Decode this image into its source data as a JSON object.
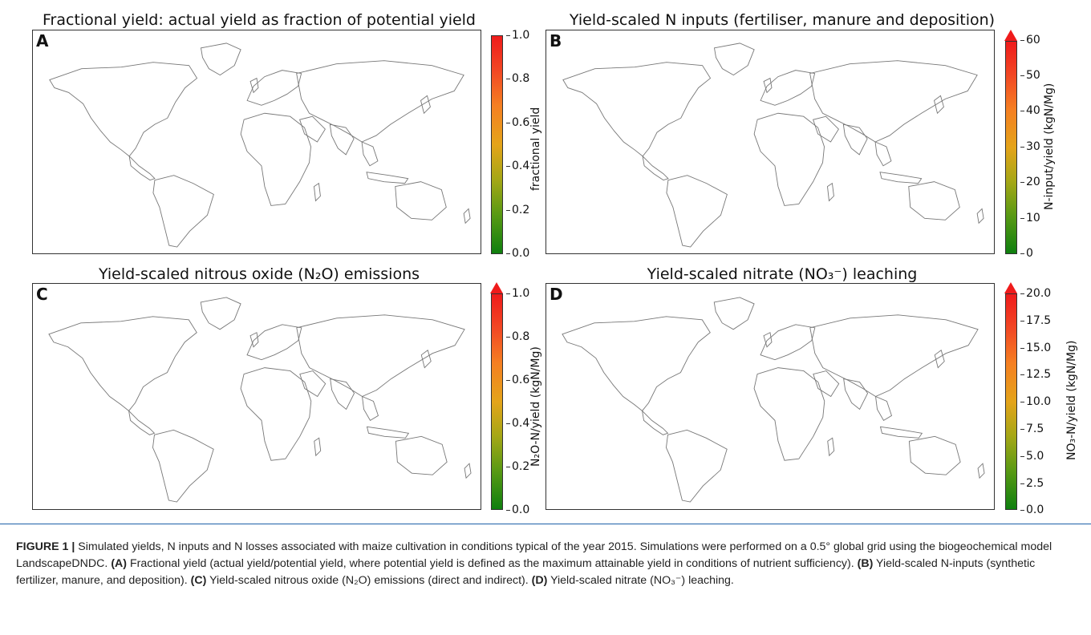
{
  "panels": [
    {
      "letter": "A",
      "title": "Fractional yield: actual yield as fraction of potential yield",
      "colorbar_label": "fractional yield",
      "ticks": [
        "1.0",
        "0.8",
        "0.6",
        "0.4",
        "0.2",
        "0.0"
      ],
      "extend_max": false
    },
    {
      "letter": "B",
      "title": "Yield-scaled N inputs (fertiliser, manure and deposition)",
      "colorbar_label": "N-input/yield (kgN/Mg)",
      "ticks": [
        "60",
        "50",
        "40",
        "30",
        "20",
        "10",
        "0"
      ],
      "extend_max": true
    },
    {
      "letter": "C",
      "title": "Yield-scaled nitrous oxide (N₂O) emissions",
      "colorbar_label": "N₂O-N/yield (kgN/Mg)",
      "ticks": [
        "1.0",
        "0.8",
        "0.6",
        "0.4",
        "0.2",
        "0.0"
      ],
      "extend_max": true
    },
    {
      "letter": "D",
      "title": "Yield-scaled nitrate (NO₃⁻) leaching",
      "colorbar_label": "NO₃-N/yield (kgN/Mg)",
      "ticks": [
        "20.0",
        "17.5",
        "15.0",
        "12.5",
        "10.0",
        "7.5",
        "5.0",
        "2.5",
        "0.0"
      ],
      "extend_max": true
    }
  ],
  "colors": {
    "low": "#0f7f0f",
    "mid": "#e4a41a",
    "high": "#ef1b1b",
    "land_outline": "#777777",
    "separator": "#1c5fa8"
  },
  "caption": {
    "label": "FIGURE 1 |",
    "text": "Simulated yields, N inputs and N losses associated with maize cultivation in conditions typical of the year 2015. Simulations were performed on a 0.5° global grid using the biogeochemical model LandscapeDNDC.",
    "a_label": "(A)",
    "a_text": "Fractional yield (actual yield/potential yield, where potential yield is defined as the maximum attainable yield in conditions of nutrient sufficiency).",
    "b_label": "(B)",
    "b_text": "Yield-scaled N-inputs (synthetic fertilizer, manure, and deposition).",
    "c_label": "(C)",
    "c_text": "Yield-scaled nitrous oxide (N₂O) emissions (direct and indirect).",
    "d_label": "(D)",
    "d_text": "Yield-scaled nitrate (NO₃⁻) leaching."
  }
}
